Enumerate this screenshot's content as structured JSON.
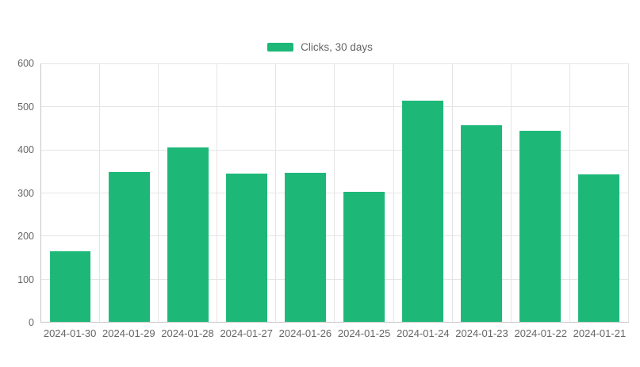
{
  "chart_data": {
    "type": "bar",
    "title": "",
    "categories": [
      "2024-01-30",
      "2024-01-29",
      "2024-01-28",
      "2024-01-27",
      "2024-01-26",
      "2024-01-25",
      "2024-01-24",
      "2024-01-23",
      "2024-01-22",
      "2024-01-21"
    ],
    "series": [
      {
        "name": "Clicks, 30 days",
        "values": [
          163,
          348,
          405,
          344,
          346,
          301,
          514,
          457,
          443,
          342
        ]
      }
    ],
    "xlabel": "",
    "ylabel": "",
    "ylim": [
      0,
      600
    ],
    "yticks": [
      0,
      100,
      200,
      300,
      400,
      500,
      600
    ],
    "grid": true,
    "legend_position": "top",
    "colors": {
      "bar": "#1db878",
      "grid": "#e5e5e5",
      "axis": "#c6c6c6",
      "tick_label": "#666666",
      "legend_text": "#666666",
      "background": "#ffffff"
    }
  }
}
